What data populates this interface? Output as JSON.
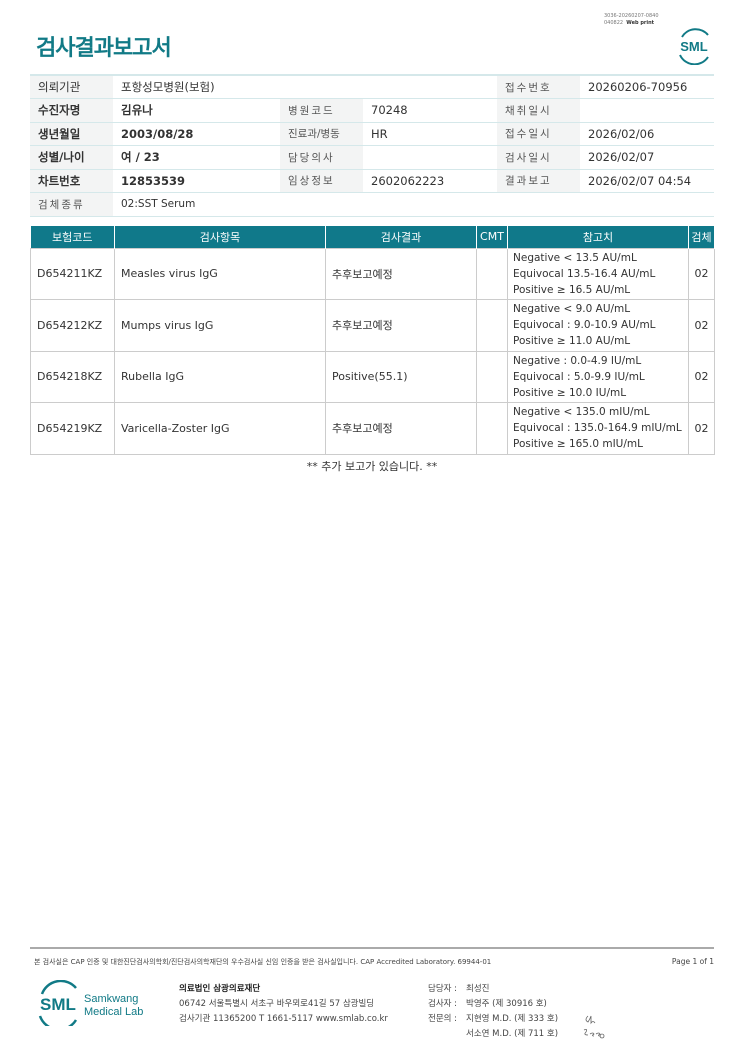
{
  "title": "검사결과보고서",
  "meta": {
    "line1": "3036-20260207-0840",
    "line2_id": "040822",
    "line2_label": "Web print"
  },
  "logo": {
    "text": "SML",
    "name1": "Samkwang",
    "name2": "Medical Lab",
    "color": "#117a86"
  },
  "info": {
    "r1": {
      "l1": "의뢰기관",
      "v1": "포항성모병원(보험)",
      "l3": "접수번호",
      "v3": "20260206-70956"
    },
    "r2": {
      "l1": "수진자명",
      "v1": "김유나",
      "l2": "병원코드",
      "v2": "70248",
      "l3": "채취일시",
      "v3": ""
    },
    "r3": {
      "l1": "생년월일",
      "v1": "2003/08/28",
      "l2": "진료과/병동",
      "v2": "HR",
      "l3": "접수일시",
      "v3": "2026/02/06"
    },
    "r4": {
      "l1": "성별/나이",
      "v1": "여 / 23",
      "l2": "담당의사",
      "v2": "",
      "l3": "검사일시",
      "v3": "2026/02/07"
    },
    "r5": {
      "l1": "차트번호",
      "v1": "12853539",
      "l2": "임상정보",
      "v2": "2602062223",
      "l3": "결과보고",
      "v3": "2026/02/07 04:54"
    },
    "r6": {
      "l1": "검체종류",
      "v1": "02:SST Serum"
    }
  },
  "results": {
    "headers": [
      "보험코드",
      "검사항목",
      "검사결과",
      "CMT",
      "참고치",
      "검체"
    ],
    "rows": [
      {
        "code": "D654211KZ",
        "item": "Measles virus IgG",
        "result": "추후보고예정",
        "cmt": "",
        "ref": [
          "Negative < 13.5 AU/mL",
          "Equivocal 13.5-16.4 AU/mL",
          "Positive ≥ 16.5 AU/mL"
        ],
        "specimen": "02"
      },
      {
        "code": "D654212KZ",
        "item": "Mumps virus IgG",
        "result": "추후보고예정",
        "cmt": "",
        "ref": [
          "Negative < 9.0 AU/mL",
          "Equivocal : 9.0-10.9 AU/mL",
          "Positive ≥ 11.0  AU/mL"
        ],
        "specimen": "02"
      },
      {
        "code": "D654218KZ",
        "item": "Rubella IgG",
        "result": "Positive(55.1)",
        "cmt": "",
        "ref": [
          "Negative : 0.0-4.9 IU/mL",
          "Equivocal : 5.0-9.9 IU/mL",
          "Positive ≥ 10.0 IU/mL"
        ],
        "specimen": "02"
      },
      {
        "code": "D654219KZ",
        "item": "Varicella-Zoster IgG",
        "result": "추후보고예정",
        "cmt": "",
        "ref": [
          "Negative < 135.0 mIU/mL",
          "Equivocal : 135.0-164.9 mIU/mL",
          "Positive ≥  165.0 mIU/mL"
        ],
        "specimen": "02"
      }
    ],
    "note": "** 추가 보고가 있습니다. **"
  },
  "footer": {
    "disclaimer": "본 검사실은 CAP 인증 및 대한진단검사의학회/진단검사의학재단의 우수검사실 신임 인증을 받은 검사실입니다.  CAP Accredited Laboratory. 69944-01",
    "page": "Page 1 of 1",
    "org": "의료법인 삼광의료재단",
    "address": "06742 서울특별시 서초구 바우뫼로41길 57 삼광빌딩",
    "contact": "검사기관 11365200  T 1661-5117  www.smlab.co.kr",
    "staff": [
      {
        "label": "담당자 :",
        "value": "최성진"
      },
      {
        "label": "검사자 :",
        "value": "박영주 (제 30916 호)"
      },
      {
        "label": "전문의 :",
        "value": "지현영 M.D. (제 333 호)"
      },
      {
        "label": "",
        "value": "서소연 M.D. (제 711 호)"
      }
    ]
  }
}
